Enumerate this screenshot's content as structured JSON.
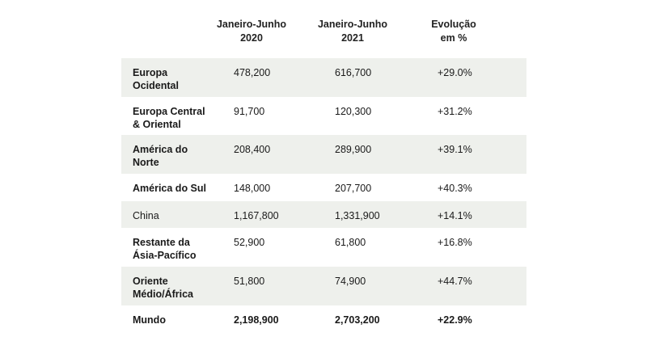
{
  "headers": [
    {
      "line1": "Janeiro-Junho",
      "line2": "2020"
    },
    {
      "line1": "Janeiro-Junho",
      "line2": "2021"
    },
    {
      "line1": "Evolução",
      "line2": "em %"
    }
  ],
  "rows": [
    {
      "region": [
        "Europa",
        "Ocidental"
      ],
      "h1_2020": "478,200",
      "h1_2021": "616,700",
      "change": "+29.0%"
    },
    {
      "region": [
        "Europa Central",
        "& Oriental"
      ],
      "h1_2020": "91,700",
      "h1_2021": "120,300",
      "change": "+31.2%"
    },
    {
      "region": [
        "América do",
        "Norte"
      ],
      "h1_2020": "208,400",
      "h1_2021": "289,900",
      "change": "+39.1%"
    },
    {
      "region": [
        "América do Sul",
        ""
      ],
      "h1_2020": "148,000",
      "h1_2021": "207,700",
      "change": "+40.3%"
    },
    {
      "region": [
        "China",
        ""
      ],
      "h1_2020": "1,167,800",
      "h1_2021": "1,331,900",
      "change": "+14.1%"
    },
    {
      "region": [
        "Restante da",
        "Ásia-Pacífico"
      ],
      "h1_2020": "52,900",
      "h1_2021": "61,800",
      "change": "+16.8%"
    },
    {
      "region": [
        "Oriente",
        "Médio/África"
      ],
      "h1_2020": "51,800",
      "h1_2021": "74,900",
      "change": "+44.7%"
    },
    {
      "region": [
        "Mundo",
        ""
      ],
      "h1_2020": "2,198,900",
      "h1_2021": "2,703,200",
      "change": "+22.9%"
    }
  ],
  "colors": {
    "shade": "#eef0ec"
  }
}
